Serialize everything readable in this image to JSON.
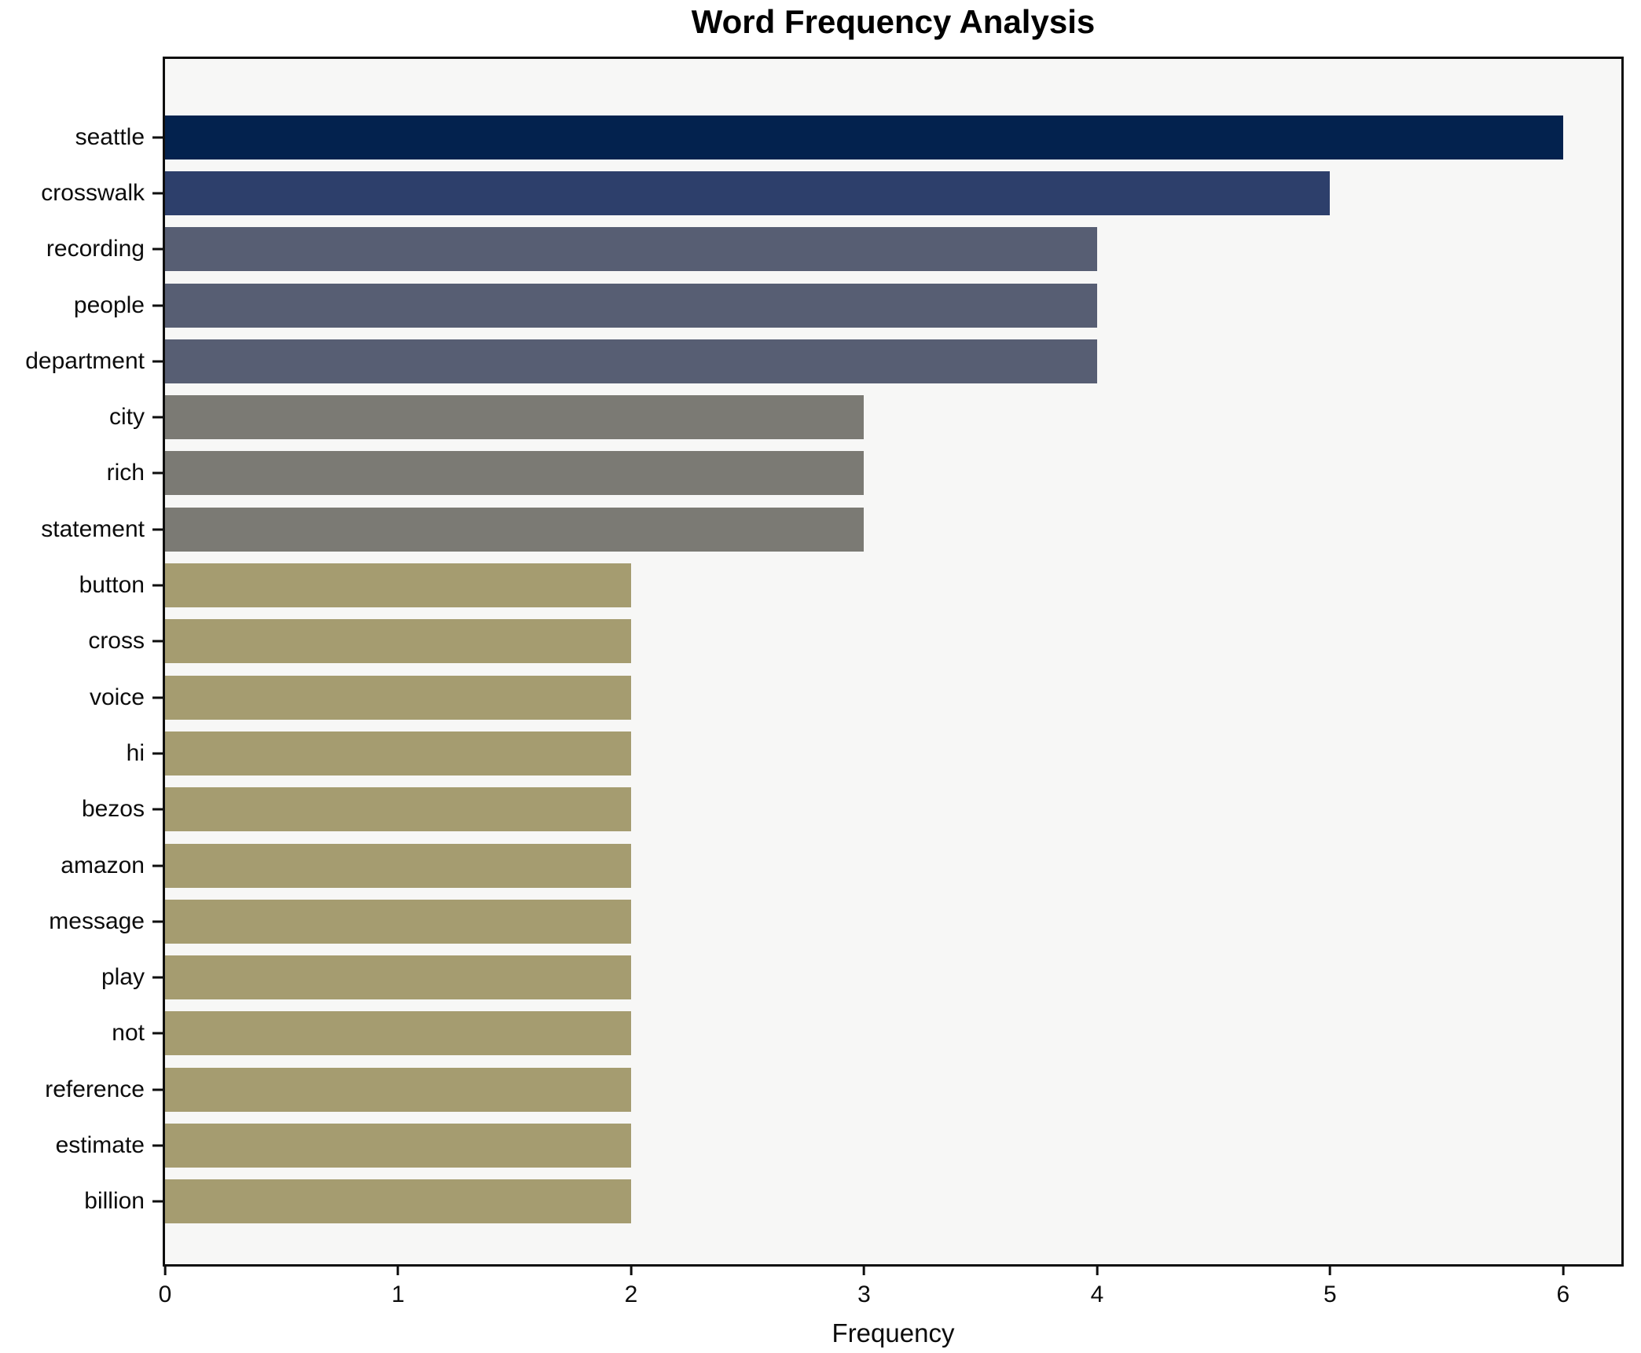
{
  "title": "Word Frequency Analysis",
  "xlabel": "Frequency",
  "colors": {
    "plot_background": "#f7f7f6",
    "figure_background": "#ffffff",
    "frame": "#0e0e0e",
    "value_6": "#03224e",
    "value_5": "#2d3f6b",
    "value_4": "#575e73",
    "value_3": "#7b7a74",
    "value_2": "#a59c70"
  },
  "chart_data": {
    "type": "bar",
    "orientation": "horizontal",
    "title": "Word Frequency Analysis",
    "xlabel": "Frequency",
    "ylabel": "",
    "grid": false,
    "legend": "none",
    "xlim": [
      0,
      6.25
    ],
    "x_ticks": [
      0,
      1,
      2,
      3,
      4,
      5,
      6
    ],
    "categories": [
      "seattle",
      "crosswalk",
      "recording",
      "people",
      "department",
      "city",
      "rich",
      "statement",
      "button",
      "cross",
      "voice",
      "hi",
      "bezos",
      "amazon",
      "message",
      "play",
      "not",
      "reference",
      "estimate",
      "billion"
    ],
    "values": [
      6,
      5,
      4,
      4,
      4,
      3,
      3,
      3,
      2,
      2,
      2,
      2,
      2,
      2,
      2,
      2,
      2,
      2,
      2,
      2
    ],
    "bar_colors": [
      "#03224e",
      "#2d3f6b",
      "#575e73",
      "#575e73",
      "#575e73",
      "#7b7a74",
      "#7b7a74",
      "#7b7a74",
      "#a59c70",
      "#a59c70",
      "#a59c70",
      "#a59c70",
      "#a59c70",
      "#a59c70",
      "#a59c70",
      "#a59c70",
      "#a59c70",
      "#a59c70",
      "#a59c70",
      "#a59c70"
    ]
  }
}
